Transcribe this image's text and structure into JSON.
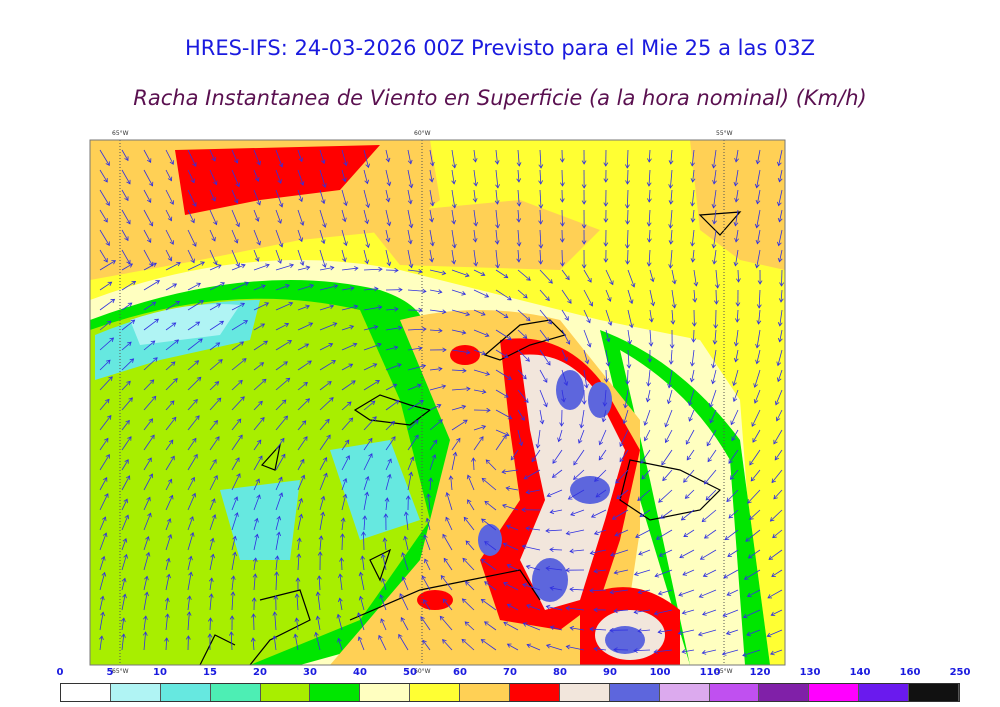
{
  "title": "HRES-IFS: 24-03-2026 00Z Previsto para el Mie 25 a las 03Z",
  "subtitle": "Racha Instantanea de Viento en Superficie (a la hora nominal) (Km/h)",
  "map": {
    "longitude_labels": [
      "65°W",
      "60°W",
      "55°W"
    ],
    "arrow_color": "#3030e0"
  },
  "colorbar": {
    "ticks": [
      "0",
      "5",
      "10",
      "15",
      "20",
      "30",
      "40",
      "50",
      "60",
      "70",
      "80",
      "90",
      "100",
      "110",
      "120",
      "130",
      "140",
      "160",
      "250"
    ],
    "colors": [
      "#ffffff",
      "#b0f4f4",
      "#66e8e0",
      "#4deeb4",
      "#a8ee00",
      "#00e600",
      "#ffffc0",
      "#ffff33",
      "#ffd055",
      "#ff0000",
      "#f2e6dc",
      "#5d66dd",
      "#dcaaee",
      "#c050f0",
      "#8020a8",
      "#ff00ff",
      "#6a1aee",
      "#111111"
    ]
  }
}
